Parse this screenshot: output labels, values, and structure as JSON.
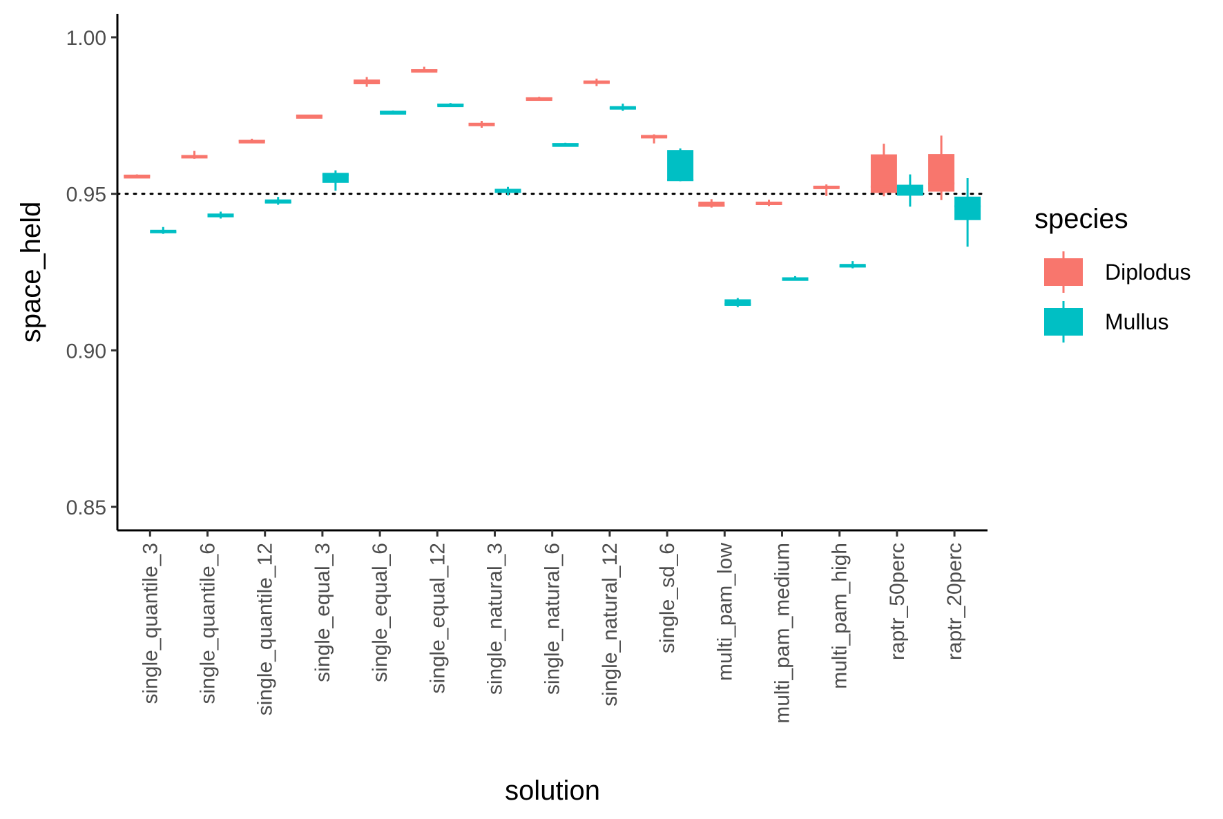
{
  "chart_data": {
    "type": "boxplot",
    "xlabel": "solution",
    "ylabel": "space_held",
    "ylim": [
      0.8425,
      1.0075
    ],
    "yticks": [
      0.85,
      0.9,
      0.95,
      1.0
    ],
    "ytick_labels": [
      "0.85",
      "0.90",
      "0.95",
      "1.00"
    ],
    "reference_line": {
      "y": 0.95,
      "style": "dotted"
    },
    "categories": [
      "single_quantile_3",
      "single_quantile_6",
      "single_quantile_12",
      "single_equal_3",
      "single_equal_6",
      "single_equal_12",
      "single_natural_3",
      "single_natural_6",
      "single_natural_12",
      "single_sd_6",
      "multi_pam_low",
      "multi_pam_medium",
      "multi_pam_high",
      "raptr_50perc",
      "raptr_20perc"
    ],
    "legend": {
      "title": "species",
      "position": "right"
    },
    "series": [
      {
        "name": "Diplodus",
        "color": "#F8766D",
        "boxes": [
          {
            "min": 0.9554,
            "q1": 0.9556,
            "median": 0.9558,
            "q3": 0.956,
            "max": 0.9562
          },
          {
            "min": 0.9612,
            "q1": 0.9617,
            "median": 0.962,
            "q3": 0.9624,
            "max": 0.9637
          },
          {
            "min": 0.9662,
            "q1": 0.9665,
            "median": 0.9669,
            "q3": 0.9672,
            "max": 0.9676
          },
          {
            "min": 0.9748,
            "q1": 0.9749,
            "median": 0.975,
            "q3": 0.9751,
            "max": 0.9752
          },
          {
            "min": 0.9842,
            "q1": 0.985,
            "median": 0.9857,
            "q3": 0.9865,
            "max": 0.9873
          },
          {
            "min": 0.9889,
            "q1": 0.9892,
            "median": 0.9895,
            "q3": 0.9898,
            "max": 0.9906
          },
          {
            "min": 0.9711,
            "q1": 0.9717,
            "median": 0.9722,
            "q3": 0.9727,
            "max": 0.9733
          },
          {
            "min": 0.9801,
            "q1": 0.9803,
            "median": 0.9805,
            "q3": 0.9808,
            "max": 0.981
          },
          {
            "min": 0.9844,
            "q1": 0.9851,
            "median": 0.9857,
            "q3": 0.9862,
            "max": 0.9868
          },
          {
            "min": 0.9661,
            "q1": 0.9678,
            "median": 0.9683,
            "q3": 0.9688,
            "max": 0.969
          },
          {
            "min": 0.9456,
            "q1": 0.9459,
            "median": 0.9462,
            "q3": 0.9475,
            "max": 0.9483
          },
          {
            "min": 0.9461,
            "q1": 0.9465,
            "median": 0.947,
            "q3": 0.9475,
            "max": 0.9481
          },
          {
            "min": 0.9493,
            "q1": 0.9517,
            "median": 0.9522,
            "q3": 0.9526,
            "max": 0.953
          },
          {
            "min": 0.9492,
            "q1": 0.9503,
            "median": 0.9523,
            "q3": 0.9626,
            "max": 0.966
          },
          {
            "min": 0.948,
            "q1": 0.9507,
            "median": 0.9533,
            "q3": 0.9627,
            "max": 0.9686
          }
        ]
      },
      {
        "name": "Mullus",
        "color": "#00BFC4",
        "boxes": [
          {
            "min": 0.9372,
            "q1": 0.9375,
            "median": 0.9378,
            "q3": 0.9385,
            "max": 0.9394
          },
          {
            "min": 0.9421,
            "q1": 0.9425,
            "median": 0.943,
            "q3": 0.9437,
            "max": 0.9443
          },
          {
            "min": 0.9465,
            "q1": 0.9469,
            "median": 0.9474,
            "q3": 0.9482,
            "max": 0.949
          },
          {
            "min": 0.951,
            "q1": 0.9535,
            "median": 0.956,
            "q3": 0.9567,
            "max": 0.9575
          },
          {
            "min": 0.9758,
            "q1": 0.976,
            "median": 0.9762,
            "q3": 0.9764,
            "max": 0.9766
          },
          {
            "min": 0.978,
            "q1": 0.9782,
            "median": 0.9785,
            "q3": 0.9788,
            "max": 0.979
          },
          {
            "min": 0.9495,
            "q1": 0.9503,
            "median": 0.951,
            "q3": 0.9516,
            "max": 0.9522
          },
          {
            "min": 0.9655,
            "q1": 0.9657,
            "median": 0.9659,
            "q3": 0.9661,
            "max": 0.9663
          },
          {
            "min": 0.9765,
            "q1": 0.977,
            "median": 0.9774,
            "q3": 0.978,
            "max": 0.9788
          },
          {
            "min": 0.954,
            "q1": 0.9542,
            "median": 0.9544,
            "q3": 0.964,
            "max": 0.9645
          },
          {
            "min": 0.9138,
            "q1": 0.9142,
            "median": 0.9148,
            "q3": 0.9163,
            "max": 0.9167
          },
          {
            "min": 0.9225,
            "q1": 0.9228,
            "median": 0.923,
            "q3": 0.9233,
            "max": 0.9237
          },
          {
            "min": 0.9262,
            "q1": 0.9265,
            "median": 0.9268,
            "q3": 0.9276,
            "max": 0.9285
          },
          {
            "min": 0.9459,
            "q1": 0.9494,
            "median": 0.9516,
            "q3": 0.9529,
            "max": 0.9562
          },
          {
            "min": 0.9331,
            "q1": 0.9416,
            "median": 0.946,
            "q3": 0.9491,
            "max": 0.955
          }
        ]
      }
    ]
  }
}
